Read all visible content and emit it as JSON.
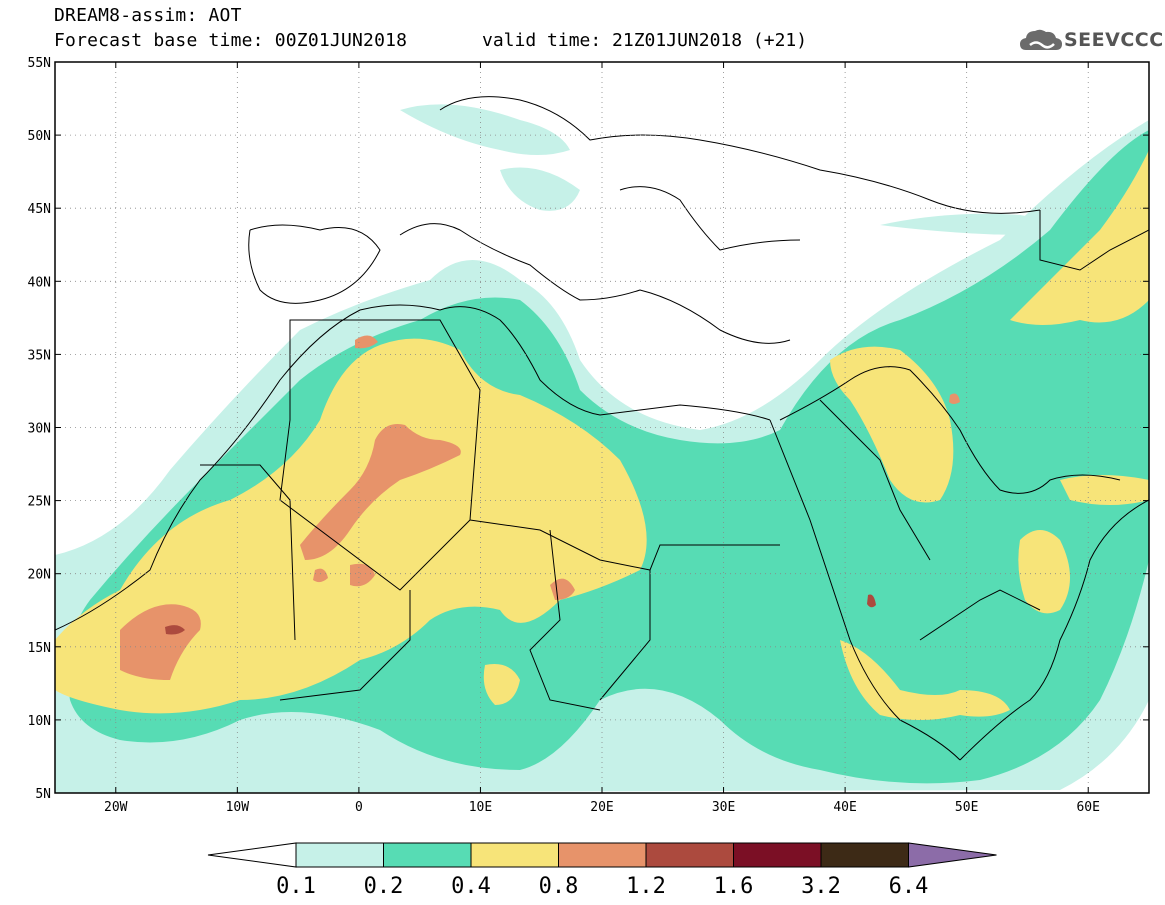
{
  "title": {
    "line1": "DREAM8-assim: AOT",
    "line2": "Forecast base time: 00Z01JUN2018",
    "valid": "valid time: 21Z01JUN2018 (+21)"
  },
  "logo": {
    "text": "SEEVCCC",
    "icon": "cloud-icon"
  },
  "map": {
    "lon_range": [
      -25,
      65
    ],
    "lat_range": [
      5,
      55
    ],
    "lon_ticks": [
      "20W",
      "10W",
      "0",
      "10E",
      "20E",
      "30E",
      "40E",
      "50E",
      "60E"
    ],
    "lat_ticks": [
      "55N",
      "50N",
      "45N",
      "40N",
      "35N",
      "30N",
      "25N",
      "20N",
      "15N",
      "10N",
      "5N"
    ],
    "grid": "dotted",
    "variable": "AOT"
  },
  "colorbar": {
    "labels": [
      "0.1",
      "0.2",
      "0.4",
      "0.8",
      "1.2",
      "1.6",
      "3.2",
      "6.4"
    ],
    "colors": [
      "#c6f1e8",
      "#57dcb4",
      "#f7e479",
      "#e7936a",
      "#ac4a3e",
      "#7b0f25",
      "#3d2a16",
      "#8c6ca8"
    ],
    "under_color": "#ffffff"
  },
  "palette": {
    "c1": "#c6f1e8",
    "c2": "#57dcb4",
    "c3": "#f7e479",
    "c4": "#e7936a",
    "c5": "#ac4a3e"
  }
}
